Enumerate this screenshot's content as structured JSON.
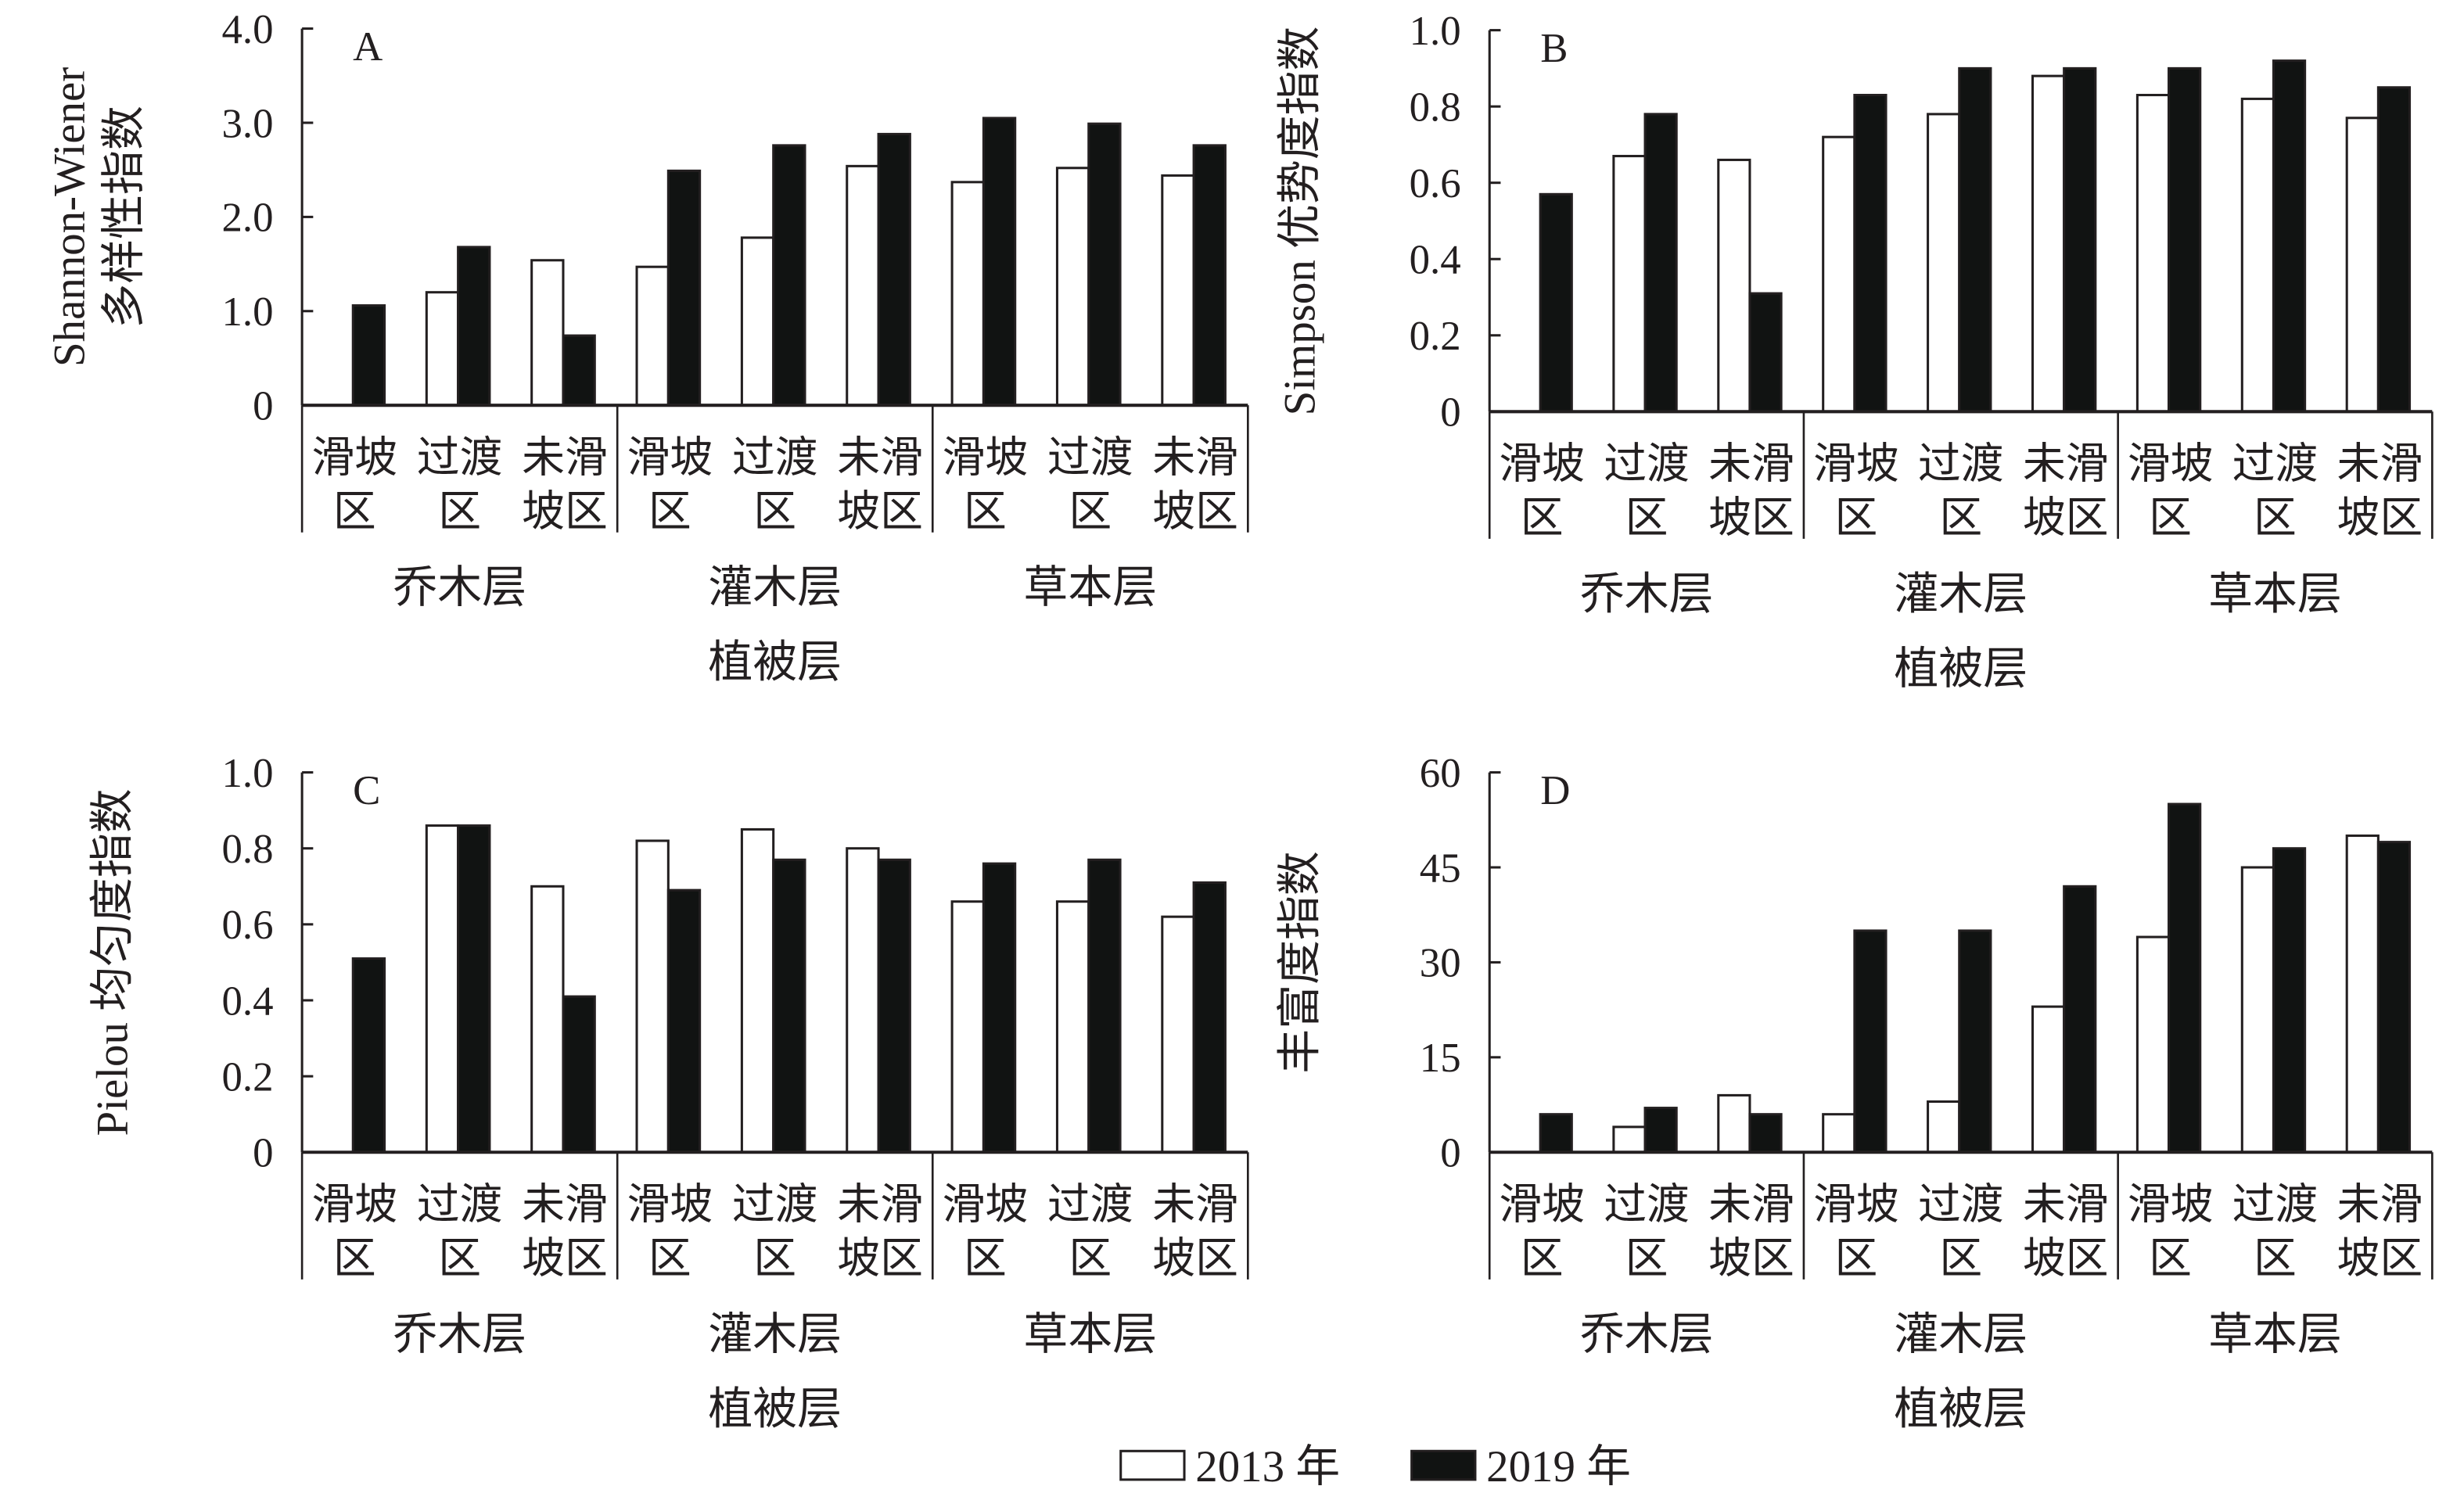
{
  "chart_data": [
    {
      "type": "bar",
      "panel_label": "A",
      "ylabel": [
        "Shannon-Wiener",
        "多样性指数"
      ],
      "xlabel": "植被层",
      "ylim": [
        0,
        4.0
      ],
      "yticks": [
        "0",
        "1.0",
        "2.0",
        "3.0",
        "4.0"
      ],
      "categories": [
        [
          "滑坡",
          "区"
        ],
        [
          "过渡",
          "区"
        ],
        [
          "未滑",
          "坡区"
        ],
        [
          "滑坡",
          "区"
        ],
        [
          "过渡",
          "区"
        ],
        [
          "未滑",
          "坡区"
        ],
        [
          "滑坡",
          "区"
        ],
        [
          "过渡",
          "区"
        ],
        [
          "未滑",
          "坡区"
        ]
      ],
      "groups": [
        "乔木层",
        "灌木层",
        "草本层"
      ],
      "series": [
        {
          "name": "2013 年",
          "values": [
            0,
            1.2,
            1.54,
            1.47,
            1.78,
            2.54,
            2.37,
            2.52,
            2.44
          ]
        },
        {
          "name": "2019 年",
          "values": [
            1.06,
            1.68,
            0.74,
            2.49,
            2.76,
            2.88,
            3.05,
            2.99,
            2.76
          ]
        }
      ]
    },
    {
      "type": "bar",
      "panel_label": "B",
      "ylabel": [
        "Simpson 优势度指数"
      ],
      "xlabel": "植被层",
      "ylim": [
        0,
        1.0
      ],
      "yticks": [
        "0",
        "0.2",
        "0.4",
        "0.6",
        "0.8",
        "1.0"
      ],
      "categories": [
        [
          "滑坡",
          "区"
        ],
        [
          "过渡",
          "区"
        ],
        [
          "未滑",
          "坡区"
        ],
        [
          "滑坡",
          "区"
        ],
        [
          "过渡",
          "区"
        ],
        [
          "未滑",
          "坡区"
        ],
        [
          "滑坡",
          "区"
        ],
        [
          "过渡",
          "区"
        ],
        [
          "未滑",
          "坡区"
        ]
      ],
      "groups": [
        "乔木层",
        "灌木层",
        "草本层"
      ],
      "series": [
        {
          "name": "2013 年",
          "values": [
            0,
            0.67,
            0.66,
            0.72,
            0.78,
            0.88,
            0.83,
            0.82,
            0.77
          ]
        },
        {
          "name": "2019 年",
          "values": [
            0.57,
            0.78,
            0.31,
            0.83,
            0.9,
            0.9,
            0.9,
            0.92,
            0.85
          ]
        }
      ]
    },
    {
      "type": "bar",
      "panel_label": "C",
      "ylabel": [
        "Pielou 均匀度指数"
      ],
      "xlabel": "植被层",
      "ylim": [
        0,
        1.0
      ],
      "yticks": [
        "0",
        "0.2",
        "0.4",
        "0.6",
        "0.8",
        "1.0"
      ],
      "categories": [
        [
          "滑坡",
          "区"
        ],
        [
          "过渡",
          "区"
        ],
        [
          "未滑",
          "坡区"
        ],
        [
          "滑坡",
          "区"
        ],
        [
          "过渡",
          "区"
        ],
        [
          "未滑",
          "坡区"
        ],
        [
          "滑坡",
          "区"
        ],
        [
          "过渡",
          "区"
        ],
        [
          "未滑",
          "坡区"
        ]
      ],
      "groups": [
        "乔木层",
        "灌木层",
        "草本层"
      ],
      "series": [
        {
          "name": "2013 年",
          "values": [
            0,
            0.86,
            0.7,
            0.82,
            0.85,
            0.8,
            0.66,
            0.66,
            0.62
          ]
        },
        {
          "name": "2019 年",
          "values": [
            0.51,
            0.86,
            0.41,
            0.69,
            0.77,
            0.77,
            0.76,
            0.77,
            0.71
          ]
        }
      ]
    },
    {
      "type": "bar",
      "panel_label": "D",
      "ylabel": [
        "丰富度指数"
      ],
      "xlabel": "植被层",
      "ylim": [
        0,
        60
      ],
      "yticks": [
        "0",
        "15",
        "30",
        "45",
        "60"
      ],
      "categories": [
        [
          "滑坡",
          "区"
        ],
        [
          "过渡",
          "区"
        ],
        [
          "未滑",
          "坡区"
        ],
        [
          "滑坡",
          "区"
        ],
        [
          "过渡",
          "区"
        ],
        [
          "未滑",
          "坡区"
        ],
        [
          "滑坡",
          "区"
        ],
        [
          "过渡",
          "区"
        ],
        [
          "未滑",
          "坡区"
        ]
      ],
      "groups": [
        "乔木层",
        "灌木层",
        "草本层"
      ],
      "series": [
        {
          "name": "2013 年",
          "values": [
            0,
            4,
            9,
            6,
            8,
            23,
            34,
            45,
            50
          ]
        },
        {
          "name": "2019 年",
          "values": [
            6,
            7,
            6,
            35,
            35,
            42,
            55,
            48,
            49
          ]
        }
      ]
    }
  ],
  "legend": {
    "items": [
      {
        "label": "2013 年",
        "color": "#ffffff"
      },
      {
        "label": "2019 年",
        "color": "#111312"
      }
    ]
  },
  "colors": {
    "bar_2013": "#ffffff",
    "bar_2019": "#111312",
    "axis": "#231f20"
  }
}
